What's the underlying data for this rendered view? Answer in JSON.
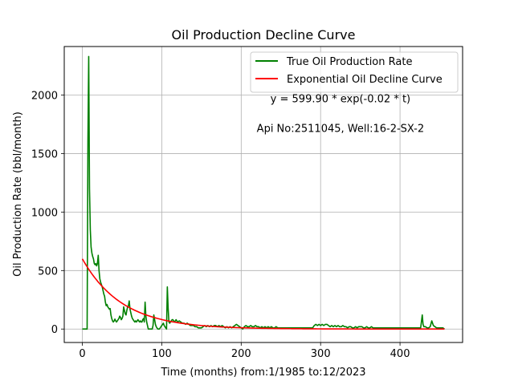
{
  "chart_data": {
    "type": "line",
    "title": "Oil Production Decline Curve",
    "xlabel": "Time (months) from:1/1985 to:12/2023",
    "ylabel": "Oil Production Rate (bbl/month)",
    "xlim": [
      -22.8,
      478.8
    ],
    "ylim": [
      -115,
      2415
    ],
    "xticks": [
      0,
      100,
      200,
      300,
      400
    ],
    "yticks": [
      0,
      500,
      1000,
      1500,
      2000
    ],
    "grid": true,
    "legend": "top-right",
    "annotations": [
      {
        "text": "y = 599.90 * exp(-0.02 * t)",
        "x": 325,
        "y": 1940
      },
      {
        "text": "Api No:2511045, Well:16-2-SX-2",
        "x": 325,
        "y": 1685
      }
    ],
    "series": [
      {
        "name": "True Oil Production Rate",
        "color": "#008000",
        "points": [
          [
            0,
            0
          ],
          [
            5,
            0
          ],
          [
            6,
            0
          ],
          [
            7,
            1600
          ],
          [
            8,
            2330
          ],
          [
            9,
            1200
          ],
          [
            10,
            850
          ],
          [
            11,
            700
          ],
          [
            12,
            650
          ],
          [
            13,
            620
          ],
          [
            14,
            600
          ],
          [
            15,
            560
          ],
          [
            16,
            550
          ],
          [
            17,
            560
          ],
          [
            18,
            540
          ],
          [
            19,
            560
          ],
          [
            20,
            630
          ],
          [
            21,
            500
          ],
          [
            22,
            430
          ],
          [
            23,
            400
          ],
          [
            24,
            380
          ],
          [
            25,
            360
          ],
          [
            26,
            330
          ],
          [
            27,
            300
          ],
          [
            28,
            280
          ],
          [
            29,
            230
          ],
          [
            30,
            200
          ],
          [
            31,
            210
          ],
          [
            32,
            190
          ],
          [
            33,
            180
          ],
          [
            34,
            170
          ],
          [
            35,
            175
          ],
          [
            36,
            120
          ],
          [
            37,
            90
          ],
          [
            38,
            70
          ],
          [
            39,
            60
          ],
          [
            40,
            70
          ],
          [
            41,
            85
          ],
          [
            42,
            70
          ],
          [
            43,
            60
          ],
          [
            44,
            70
          ],
          [
            45,
            80
          ],
          [
            46,
            90
          ],
          [
            47,
            110
          ],
          [
            48,
            100
          ],
          [
            49,
            80
          ],
          [
            50,
            90
          ],
          [
            51,
            110
          ],
          [
            52,
            190
          ],
          [
            53,
            160
          ],
          [
            54,
            130
          ],
          [
            55,
            120
          ],
          [
            56,
            160
          ],
          [
            57,
            190
          ],
          [
            58,
            200
          ],
          [
            59,
            240
          ],
          [
            60,
            170
          ],
          [
            61,
            140
          ],
          [
            62,
            110
          ],
          [
            63,
            90
          ],
          [
            64,
            80
          ],
          [
            65,
            70
          ],
          [
            66,
            60
          ],
          [
            67,
            70
          ],
          [
            68,
            60
          ],
          [
            69,
            70
          ],
          [
            70,
            80
          ],
          [
            71,
            70
          ],
          [
            72,
            60
          ],
          [
            73,
            70
          ],
          [
            74,
            60
          ],
          [
            75,
            60
          ],
          [
            76,
            80
          ],
          [
            77,
            90
          ],
          [
            78,
            60
          ],
          [
            79,
            230
          ],
          [
            80,
            110
          ],
          [
            81,
            60
          ],
          [
            82,
            30
          ],
          [
            83,
            0
          ],
          [
            84,
            0
          ],
          [
            85,
            0
          ],
          [
            86,
            0
          ],
          [
            87,
            0
          ],
          [
            88,
            0
          ],
          [
            89,
            30
          ],
          [
            90,
            120
          ],
          [
            91,
            80
          ],
          [
            92,
            40
          ],
          [
            93,
            20
          ],
          [
            94,
            10
          ],
          [
            95,
            0
          ],
          [
            96,
            0
          ],
          [
            97,
            0
          ],
          [
            98,
            10
          ],
          [
            99,
            20
          ],
          [
            100,
            30
          ],
          [
            101,
            40
          ],
          [
            102,
            50
          ],
          [
            103,
            30
          ],
          [
            104,
            20
          ],
          [
            105,
            10
          ],
          [
            106,
            0
          ],
          [
            107,
            360
          ],
          [
            108,
            180
          ],
          [
            109,
            60
          ],
          [
            110,
            50
          ],
          [
            111,
            60
          ],
          [
            112,
            70
          ],
          [
            113,
            80
          ],
          [
            114,
            80
          ],
          [
            115,
            70
          ],
          [
            116,
            60
          ],
          [
            117,
            70
          ],
          [
            118,
            80
          ],
          [
            119,
            70
          ],
          [
            120,
            60
          ],
          [
            122,
            70
          ],
          [
            124,
            60
          ],
          [
            126,
            50
          ],
          [
            128,
            50
          ],
          [
            130,
            40
          ],
          [
            132,
            50
          ],
          [
            134,
            40
          ],
          [
            136,
            30
          ],
          [
            138,
            30
          ],
          [
            140,
            30
          ],
          [
            142,
            20
          ],
          [
            144,
            20
          ],
          [
            146,
            10
          ],
          [
            148,
            10
          ],
          [
            150,
            10
          ],
          [
            152,
            20
          ],
          [
            154,
            30
          ],
          [
            156,
            20
          ],
          [
            158,
            30
          ],
          [
            160,
            20
          ],
          [
            162,
            30
          ],
          [
            164,
            20
          ],
          [
            166,
            30
          ],
          [
            168,
            30
          ],
          [
            170,
            20
          ],
          [
            172,
            30
          ],
          [
            174,
            20
          ],
          [
            176,
            30
          ],
          [
            178,
            20
          ],
          [
            180,
            10
          ],
          [
            182,
            20
          ],
          [
            184,
            10
          ],
          [
            186,
            20
          ],
          [
            188,
            10
          ],
          [
            190,
            20
          ],
          [
            192,
            30
          ],
          [
            194,
            40
          ],
          [
            196,
            30
          ],
          [
            198,
            20
          ],
          [
            200,
            10
          ],
          [
            202,
            0
          ],
          [
            204,
            20
          ],
          [
            206,
            30
          ],
          [
            208,
            20
          ],
          [
            210,
            20
          ],
          [
            212,
            30
          ],
          [
            214,
            20
          ],
          [
            216,
            20
          ],
          [
            218,
            30
          ],
          [
            220,
            20
          ],
          [
            222,
            20
          ],
          [
            224,
            10
          ],
          [
            226,
            20
          ],
          [
            228,
            10
          ],
          [
            230,
            20
          ],
          [
            232,
            10
          ],
          [
            234,
            20
          ],
          [
            236,
            10
          ],
          [
            238,
            20
          ],
          [
            240,
            10
          ],
          [
            242,
            10
          ],
          [
            244,
            20
          ],
          [
            246,
            10
          ],
          [
            248,
            10
          ],
          [
            250,
            10
          ],
          [
            252,
            10
          ],
          [
            254,
            10
          ],
          [
            256,
            10
          ],
          [
            258,
            10
          ],
          [
            260,
            10
          ],
          [
            262,
            10
          ],
          [
            264,
            10
          ],
          [
            266,
            10
          ],
          [
            268,
            10
          ],
          [
            270,
            10
          ],
          [
            272,
            10
          ],
          [
            274,
            10
          ],
          [
            276,
            10
          ],
          [
            278,
            10
          ],
          [
            280,
            10
          ],
          [
            282,
            10
          ],
          [
            284,
            10
          ],
          [
            286,
            10
          ],
          [
            288,
            10
          ],
          [
            290,
            10
          ],
          [
            292,
            30
          ],
          [
            294,
            40
          ],
          [
            296,
            30
          ],
          [
            298,
            40
          ],
          [
            300,
            30
          ],
          [
            302,
            40
          ],
          [
            304,
            30
          ],
          [
            306,
            40
          ],
          [
            308,
            40
          ],
          [
            310,
            30
          ],
          [
            312,
            20
          ],
          [
            314,
            30
          ],
          [
            316,
            20
          ],
          [
            318,
            30
          ],
          [
            320,
            20
          ],
          [
            322,
            30
          ],
          [
            324,
            20
          ],
          [
            326,
            20
          ],
          [
            328,
            30
          ],
          [
            330,
            20
          ],
          [
            332,
            20
          ],
          [
            334,
            10
          ],
          [
            336,
            20
          ],
          [
            338,
            20
          ],
          [
            340,
            10
          ],
          [
            342,
            10
          ],
          [
            344,
            20
          ],
          [
            346,
            10
          ],
          [
            348,
            20
          ],
          [
            350,
            20
          ],
          [
            352,
            20
          ],
          [
            354,
            10
          ],
          [
            356,
            10
          ],
          [
            358,
            20
          ],
          [
            360,
            10
          ],
          [
            362,
            10
          ],
          [
            364,
            20
          ],
          [
            366,
            10
          ],
          [
            368,
            10
          ],
          [
            370,
            10
          ],
          [
            372,
            10
          ],
          [
            374,
            10
          ],
          [
            376,
            10
          ],
          [
            378,
            10
          ],
          [
            380,
            10
          ],
          [
            382,
            10
          ],
          [
            384,
            10
          ],
          [
            386,
            10
          ],
          [
            388,
            10
          ],
          [
            390,
            10
          ],
          [
            392,
            10
          ],
          [
            394,
            10
          ],
          [
            396,
            10
          ],
          [
            398,
            10
          ],
          [
            400,
            10
          ],
          [
            402,
            10
          ],
          [
            404,
            10
          ],
          [
            406,
            10
          ],
          [
            408,
            10
          ],
          [
            410,
            10
          ],
          [
            412,
            10
          ],
          [
            414,
            10
          ],
          [
            416,
            10
          ],
          [
            418,
            10
          ],
          [
            420,
            10
          ],
          [
            422,
            10
          ],
          [
            424,
            10
          ],
          [
            426,
            10
          ],
          [
            428,
            120
          ],
          [
            429,
            40
          ],
          [
            430,
            20
          ],
          [
            432,
            20
          ],
          [
            434,
            10
          ],
          [
            436,
            10
          ],
          [
            438,
            20
          ],
          [
            440,
            70
          ],
          [
            442,
            30
          ],
          [
            444,
            20
          ],
          [
            446,
            10
          ],
          [
            448,
            10
          ],
          [
            450,
            10
          ],
          [
            452,
            10
          ],
          [
            454,
            10
          ],
          [
            456,
            0
          ]
        ]
      },
      {
        "name": "Exponential Oil Decline Curve",
        "color": "#ff0000",
        "model": {
          "a": 599.9,
          "b": 0.02,
          "t_start": 0,
          "t_end": 456
        }
      }
    ]
  }
}
